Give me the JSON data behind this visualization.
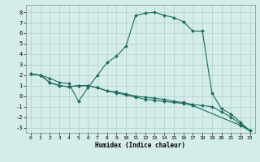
{
  "title": "",
  "xlabel": "Humidex (Indice chaleur)",
  "ylabel": "",
  "xlim": [
    -0.5,
    23.5
  ],
  "ylim": [
    -3.5,
    8.7
  ],
  "xticks": [
    0,
    1,
    2,
    3,
    4,
    5,
    6,
    7,
    8,
    9,
    10,
    11,
    12,
    13,
    14,
    15,
    16,
    17,
    18,
    19,
    20,
    21,
    22,
    23
  ],
  "yticks": [
    -3,
    -2,
    -1,
    0,
    1,
    2,
    3,
    4,
    5,
    6,
    7,
    8
  ],
  "bg_color": "#d4ecea",
  "grid_color": "#b0d0cc",
  "line_color": "#1a6b5a",
  "line1_x": [
    0,
    1,
    2,
    3,
    4,
    5,
    6,
    7,
    8,
    9,
    10,
    11,
    12,
    13,
    14,
    15,
    16,
    17,
    18,
    19,
    20,
    21,
    22,
    23
  ],
  "line1_y": [
    2.1,
    2.0,
    1.7,
    1.3,
    1.2,
    -0.5,
    0.8,
    2.0,
    3.2,
    3.8,
    4.8,
    7.7,
    7.9,
    8.0,
    7.7,
    7.5,
    7.1,
    6.2,
    6.2,
    0.3,
    -1.2,
    -1.7,
    -2.5,
    -3.3
  ],
  "line2_x": [
    0,
    1,
    2,
    3,
    4,
    5,
    6,
    7,
    8,
    9,
    10,
    11,
    12,
    13,
    14,
    15,
    16,
    17,
    18,
    19,
    20,
    21,
    22,
    23
  ],
  "line2_y": [
    2.1,
    2.0,
    1.3,
    1.0,
    0.9,
    1.0,
    1.0,
    0.8,
    0.5,
    0.4,
    0.2,
    0.0,
    -0.1,
    -0.2,
    -0.3,
    -0.5,
    -0.6,
    -0.8,
    -0.9,
    -1.0,
    -1.5,
    -2.0,
    -2.7,
    -3.3
  ],
  "line3_x": [
    0,
    1,
    2,
    3,
    4,
    5,
    6,
    7,
    8,
    9,
    10,
    11,
    12,
    13,
    14,
    15,
    16,
    17,
    22,
    23
  ],
  "line3_y": [
    2.1,
    2.0,
    1.3,
    1.0,
    0.9,
    1.0,
    1.0,
    0.8,
    0.5,
    0.3,
    0.1,
    -0.1,
    -0.3,
    -0.4,
    -0.5,
    -0.6,
    -0.7,
    -0.9,
    -2.8,
    -3.3
  ]
}
